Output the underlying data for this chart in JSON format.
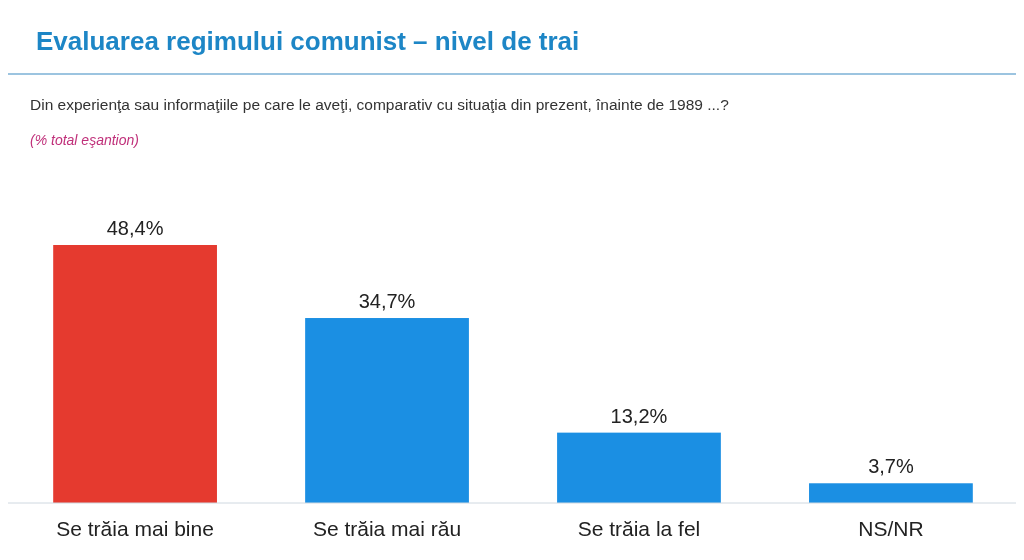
{
  "chart_data": {
    "type": "bar",
    "title": "Evaluarea regimului comunist – nivel de trai",
    "subtitle": "Din experienţa sau informaţiile pe care le aveţi, comparativ cu situaţia din prezent, înainte de 1989 ...?",
    "annotations": [
      "(% total eşantion)"
    ],
    "categories": [
      "Se trăia mai bine",
      "Se trăia mai rău",
      "Se trăia la fel",
      "NS/NR"
    ],
    "values": [
      48.4,
      34.7,
      13.2,
      3.7
    ],
    "colors": [
      "#e53a2f",
      "#1b8fe3",
      "#1b8fe3",
      "#1b8fe3"
    ],
    "value_labels": [
      "48,4%",
      "34,7%",
      "13,2%",
      "3,7%"
    ]
  }
}
